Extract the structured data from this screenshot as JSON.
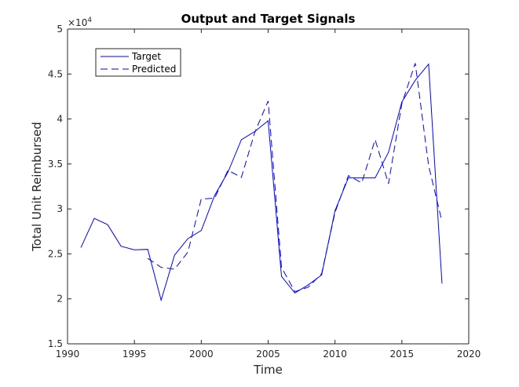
{
  "chart_data": {
    "type": "line",
    "title": "Output and Target Signals",
    "xlabel": "Time",
    "ylabel": "Total Unit Reimbursed",
    "xlim": [
      1990,
      2020
    ],
    "ylim": [
      15000,
      50000
    ],
    "y_scale_factor": 10000,
    "y_exponent_label": "×10",
    "y_exponent_power": "4",
    "x_ticks": [
      1990,
      1995,
      2000,
      2005,
      2010,
      2015,
      2020
    ],
    "x_tick_labels": [
      "1990",
      "1995",
      "2000",
      "2005",
      "2010",
      "2015",
      "2020"
    ],
    "y_ticks": [
      15000,
      20000,
      25000,
      30000,
      35000,
      40000,
      45000,
      50000
    ],
    "y_tick_labels": [
      "1.5",
      "2",
      "2.5",
      "3",
      "3.5",
      "4",
      "4.5",
      "5"
    ],
    "grid": false,
    "legend_position": "top-left",
    "series": [
      {
        "name": "Target",
        "style": "solid",
        "color": "#0000ff",
        "x": [
          1991,
          1992,
          1993,
          1994,
          1995,
          1996,
          1997,
          1998,
          1999,
          2000,
          2001,
          2002,
          2003,
          2004,
          2005,
          2006,
          2007,
          2008,
          2009,
          2010,
          2011,
          2012,
          2013,
          2014,
          2015,
          2016,
          2017,
          2018
        ],
        "values": [
          25700,
          28950,
          28250,
          25850,
          25450,
          25500,
          19850,
          24850,
          26700,
          27600,
          31500,
          34100,
          37700,
          38600,
          39800,
          22500,
          20650,
          21550,
          22650,
          29800,
          33450,
          33450,
          33450,
          36300,
          41900,
          44300,
          46100,
          21700
        ]
      },
      {
        "name": "Predicted",
        "style": "dashed",
        "color": "#0000ff",
        "x": [
          1996,
          1997,
          1998,
          1999,
          2000,
          2001,
          2002,
          2003,
          2004,
          2005,
          2006,
          2007,
          2008,
          2009,
          2010,
          2011,
          2012,
          2013,
          2014,
          2015,
          2016,
          2017,
          2018
        ],
        "values": [
          24500,
          23500,
          23300,
          25200,
          31100,
          31200,
          34300,
          33500,
          38500,
          42000,
          23500,
          20800,
          21300,
          22800,
          29600,
          33700,
          32900,
          37700,
          32800,
          41700,
          46200,
          34800,
          28600
        ]
      }
    ]
  }
}
